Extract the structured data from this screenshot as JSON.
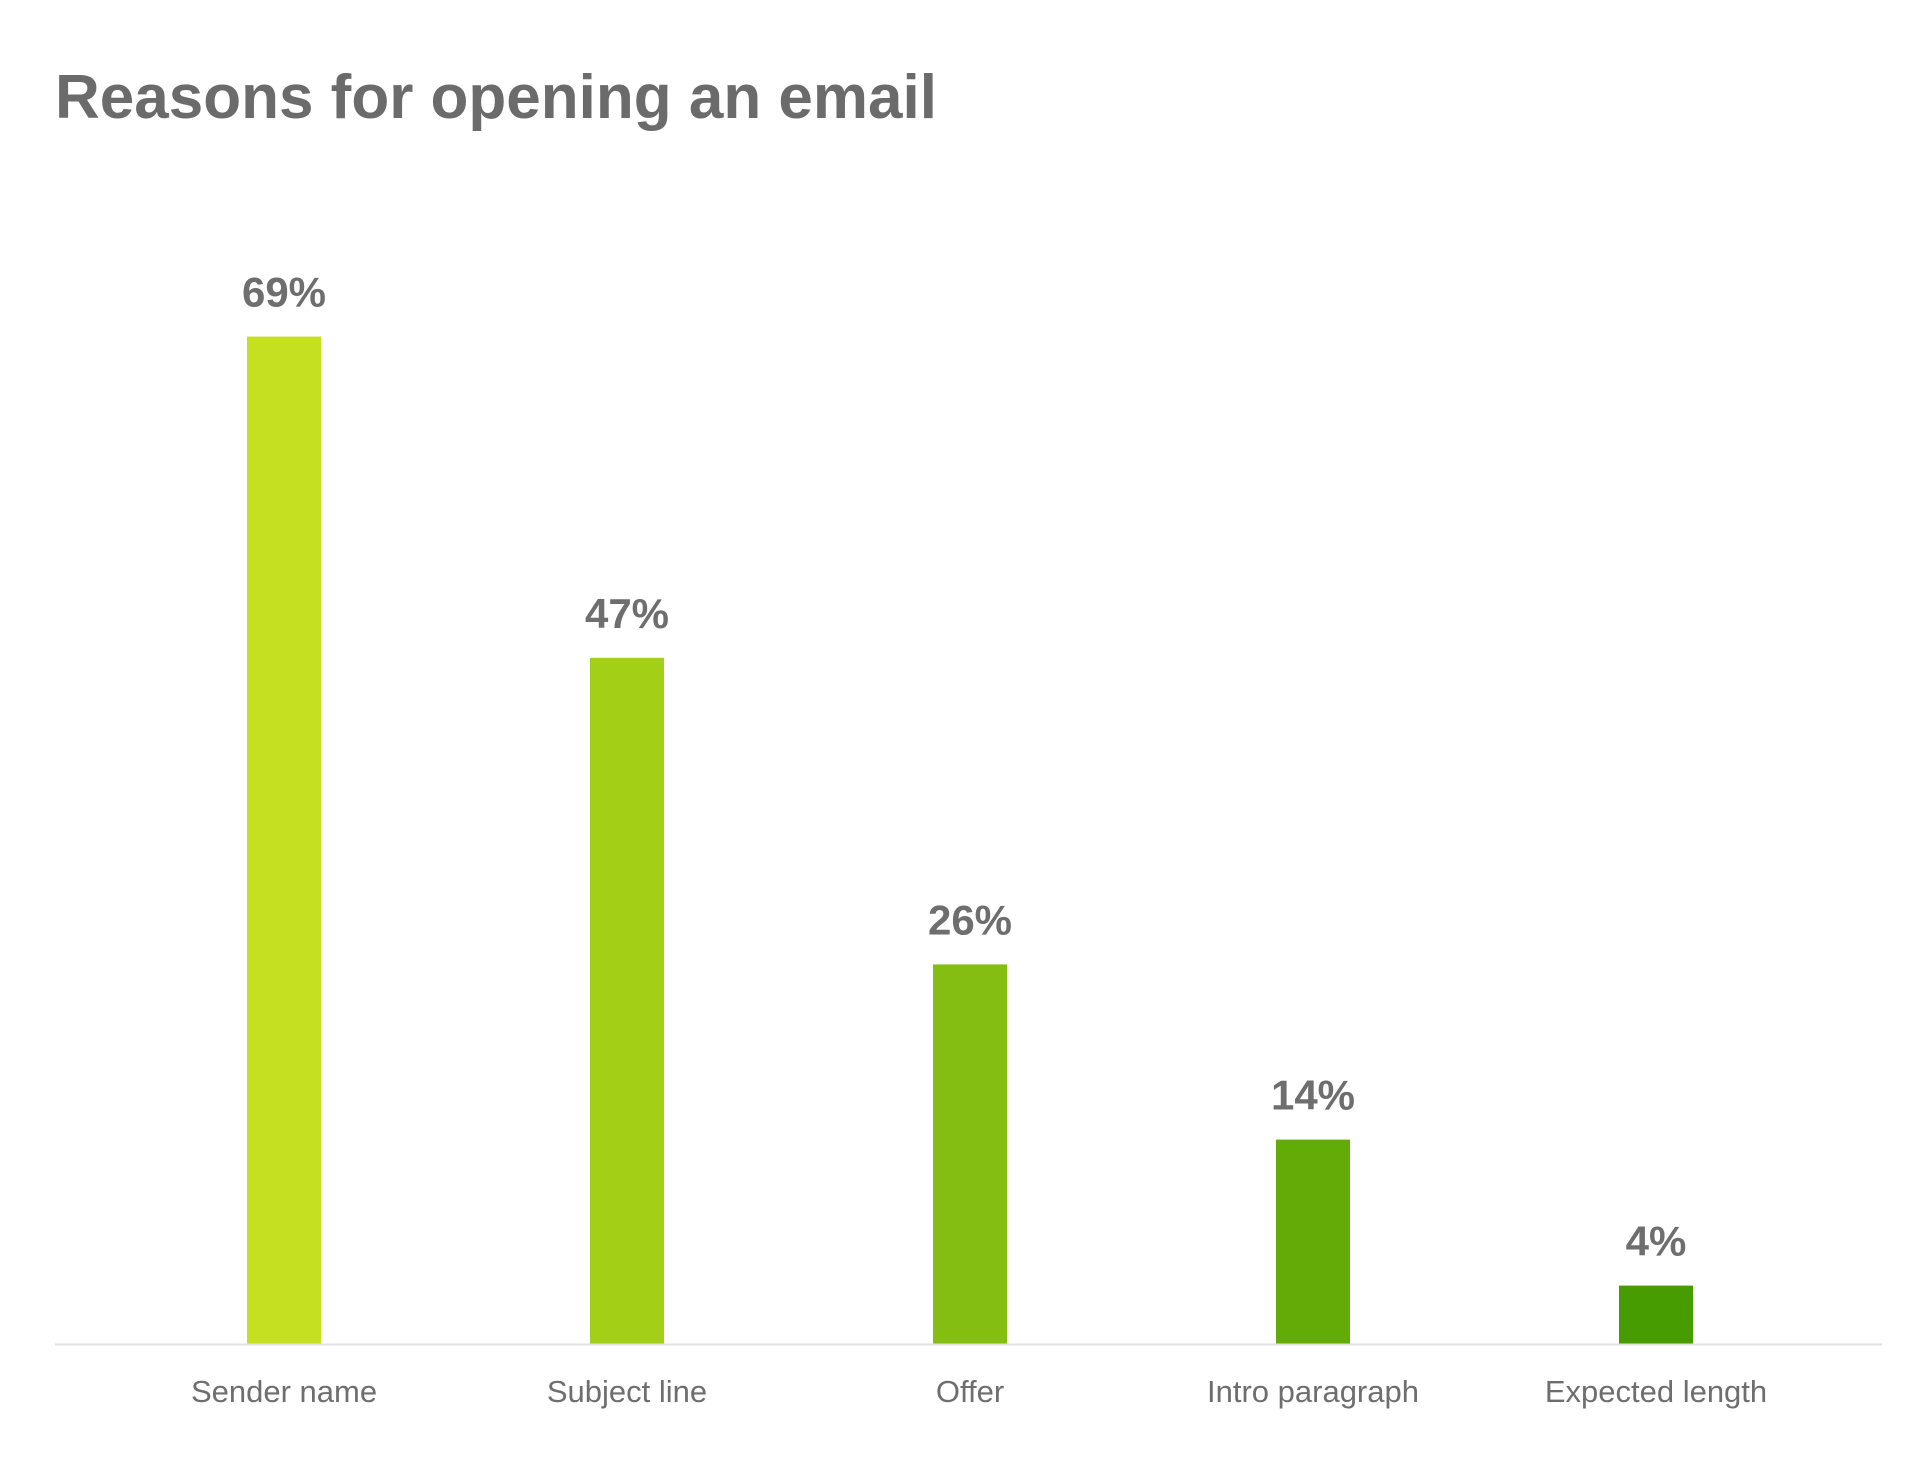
{
  "chart_data": {
    "type": "bar",
    "title": "Reasons for opening an email",
    "xlabel": "",
    "ylabel": "",
    "categories": [
      "Sender name",
      "Subject line",
      "Offer",
      "Intro paragraph",
      "Expected length"
    ],
    "values": [
      69,
      47,
      26,
      14,
      4
    ],
    "value_labels": [
      "69%",
      "47%",
      "26%",
      "14%",
      "4%"
    ],
    "ylim": [
      0,
      70
    ],
    "grid": false,
    "colors": [
      "#c4e021",
      "#a3cf17",
      "#84be10",
      "#63ab07",
      "#469c00"
    ],
    "axis_color": "#e2e2e2"
  }
}
